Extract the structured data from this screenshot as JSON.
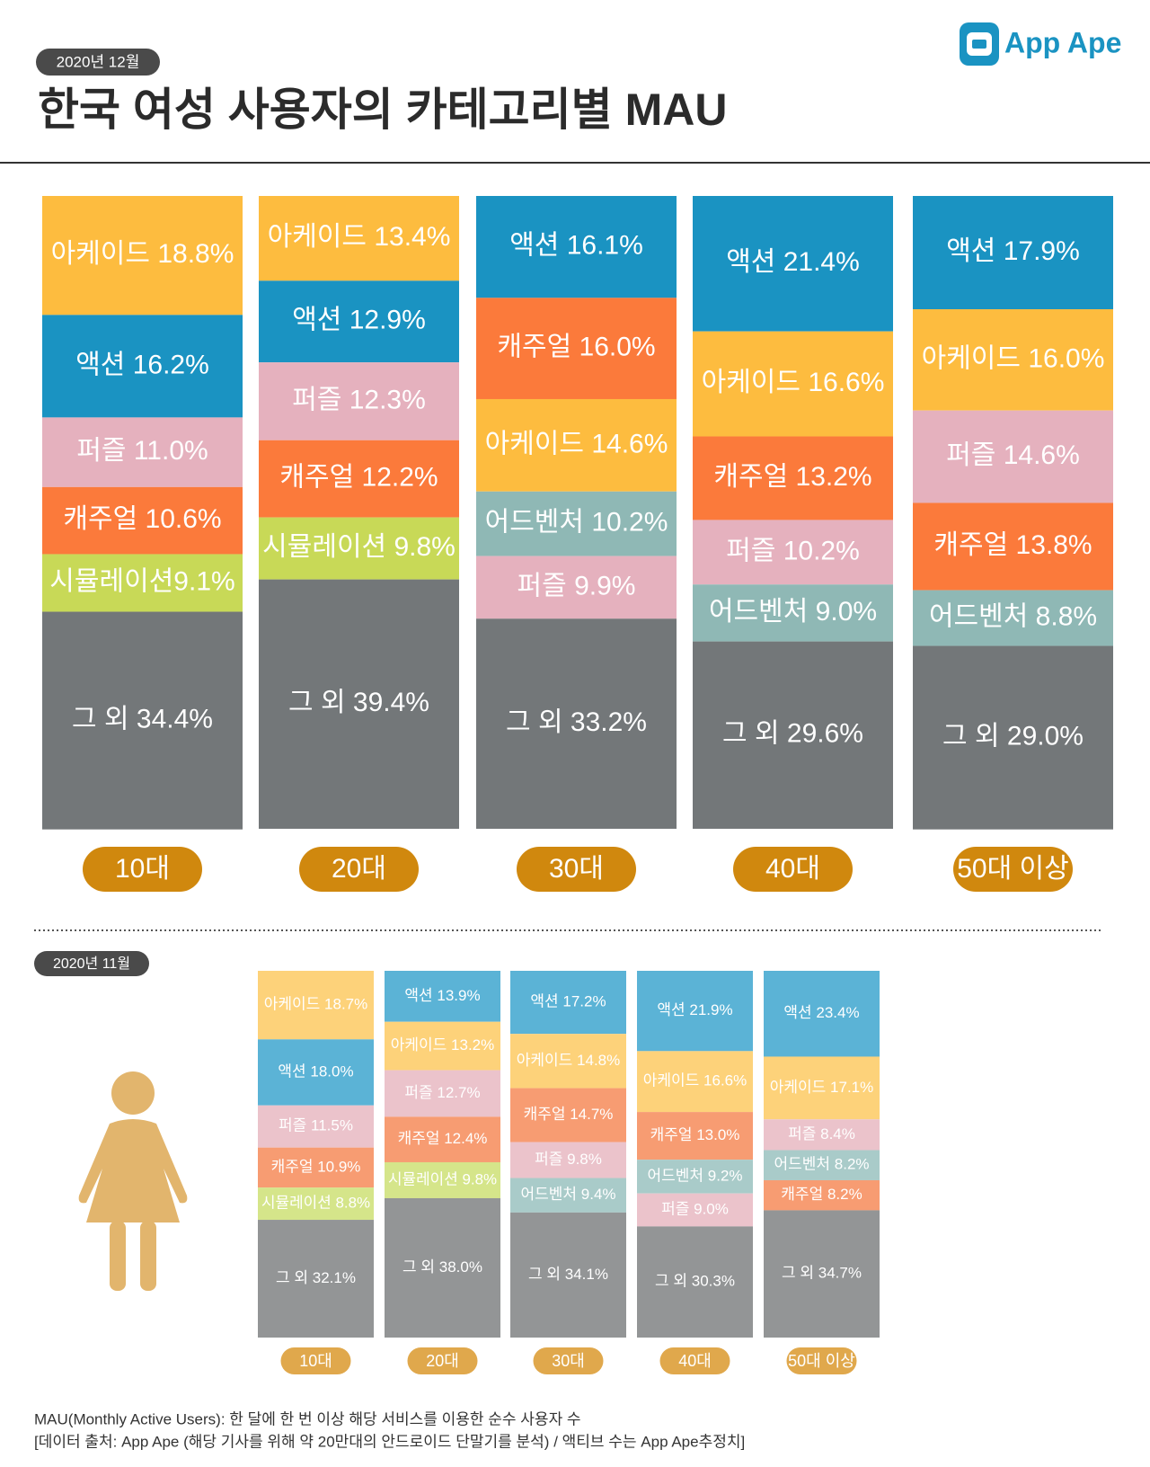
{
  "logo": "App Ape",
  "chart_data": [
    {
      "type": "stacked-bar",
      "title": "한국 여성 사용자의 카테고리별 MAU",
      "subtitle": "2020년 12월",
      "ylim": [
        0,
        100
      ],
      "pill_color": "#D0880E",
      "categories": [
        "10대",
        "20대",
        "30대",
        "40대",
        "50대 이상"
      ],
      "stacks": [
        [
          {
            "value": 18.8,
            "value_label": "아케이드 18.8%",
            "color": "#FDBC3F"
          },
          {
            "value": 16.2,
            "value_label": "액션 16.2%",
            "color": "#1A93C2"
          },
          {
            "value": 11.0,
            "value_label": "퍼즐 11.0%",
            "color": "#E5B1BE"
          },
          {
            "value": 10.6,
            "value_label": "캐주얼 10.6%",
            "color": "#FB7A3B"
          },
          {
            "value": 9.1,
            "value_label": "시뮬레이션9.1%",
            "color": "#C8D957"
          },
          {
            "value": 34.4,
            "value_label": "그 외 34.4%",
            "color": "#737779"
          }
        ],
        [
          {
            "value": 13.4,
            "value_label": "아케이드 13.4%",
            "color": "#FDBC3F"
          },
          {
            "value": 12.9,
            "value_label": "액션 12.9%",
            "color": "#1A93C2"
          },
          {
            "value": 12.3,
            "value_label": "퍼즐 12.3%",
            "color": "#E5B1BE"
          },
          {
            "value": 12.2,
            "value_label": "캐주얼 12.2%",
            "color": "#FB7A3B"
          },
          {
            "value": 9.8,
            "value_label": "시뮬레이션 9.8%",
            "color": "#C8D957"
          },
          {
            "value": 39.4,
            "value_label": "그 외 39.4%",
            "color": "#737779"
          }
        ],
        [
          {
            "value": 16.1,
            "value_label": "액션 16.1%",
            "color": "#1A93C2"
          },
          {
            "value": 16.0,
            "value_label": "캐주얼 16.0%",
            "color": "#FB7A3B"
          },
          {
            "value": 14.6,
            "value_label": "아케이드 14.6%",
            "color": "#FDBC3F"
          },
          {
            "value": 10.2,
            "value_label": "어드벤처 10.2%",
            "color": "#8FB8B5"
          },
          {
            "value": 9.9,
            "value_label": "퍼즐 9.9%",
            "color": "#E5B1BE"
          },
          {
            "value": 33.2,
            "value_label": "그 외 33.2%",
            "color": "#737779"
          }
        ],
        [
          {
            "value": 21.4,
            "value_label": "액션 21.4%",
            "color": "#1A93C2"
          },
          {
            "value": 16.6,
            "value_label": "아케이드 16.6%",
            "color": "#FDBC3F"
          },
          {
            "value": 13.2,
            "value_label": "캐주얼 13.2%",
            "color": "#FB7A3B"
          },
          {
            "value": 10.2,
            "value_label": "퍼즐 10.2%",
            "color": "#E5B1BE"
          },
          {
            "value": 9.0,
            "value_label": "어드벤처 9.0%",
            "color": "#8FB8B5"
          },
          {
            "value": 29.6,
            "value_label": "그 외 29.6%",
            "color": "#737779"
          }
        ],
        [
          {
            "value": 17.9,
            "value_label": "액션 17.9%",
            "color": "#1A93C2"
          },
          {
            "value": 16.0,
            "value_label": "아케이드 16.0%",
            "color": "#FDBC3F"
          },
          {
            "value": 14.6,
            "value_label": "퍼즐 14.6%",
            "color": "#E5B1BE"
          },
          {
            "value": 13.8,
            "value_label": "캐주얼 13.8%",
            "color": "#FB7A3B"
          },
          {
            "value": 8.8,
            "value_label": "어드벤처 8.8%",
            "color": "#8FB8B5"
          },
          {
            "value": 29.0,
            "value_label": "그 외 29.0%",
            "color": "#737779"
          }
        ]
      ]
    },
    {
      "type": "stacked-bar",
      "subtitle": "2020년 11월",
      "ylim": [
        0,
        100
      ],
      "pill_color": "#E0A84C",
      "categories": [
        "10대",
        "20대",
        "30대",
        "40대",
        "50대 이상"
      ],
      "stacks": [
        [
          {
            "value": 18.7,
            "value_label": "아케이드 18.7%",
            "color": "#FDD27A"
          },
          {
            "value": 18.0,
            "value_label": "액션 18.0%",
            "color": "#5BB3D6"
          },
          {
            "value": 11.5,
            "value_label": "퍼즐 11.5%",
            "color": "#EBC3CB"
          },
          {
            "value": 10.9,
            "value_label": "캐주얼 10.9%",
            "color": "#F79C72"
          },
          {
            "value": 8.8,
            "value_label": "시뮬레이션 8.8%",
            "color": "#D5E58A"
          },
          {
            "value": 32.1,
            "value_label": "그 외 32.1%",
            "color": "#939596"
          }
        ],
        [
          {
            "value": 13.9,
            "value_label": "액션 13.9%",
            "color": "#5BB3D6"
          },
          {
            "value": 13.2,
            "value_label": "아케이드 13.2%",
            "color": "#FDD27A"
          },
          {
            "value": 12.7,
            "value_label": "퍼즐 12.7%",
            "color": "#EBC3CB"
          },
          {
            "value": 12.4,
            "value_label": "캐주얼 12.4%",
            "color": "#F79C72"
          },
          {
            "value": 9.8,
            "value_label": "시뮬레이션 9.8%",
            "color": "#D5E58A"
          },
          {
            "value": 38.0,
            "value_label": "그 외 38.0%",
            "color": "#939596"
          }
        ],
        [
          {
            "value": 17.2,
            "value_label": "액션 17.2%",
            "color": "#5BB3D6"
          },
          {
            "value": 14.8,
            "value_label": "아케이드 14.8%",
            "color": "#FDD27A"
          },
          {
            "value": 14.7,
            "value_label": "캐주얼 14.7%",
            "color": "#F79C72"
          },
          {
            "value": 9.8,
            "value_label": "퍼즐 9.8%",
            "color": "#EBC3CB"
          },
          {
            "value": 9.4,
            "value_label": "어드벤처 9.4%",
            "color": "#A9CBC9"
          },
          {
            "value": 34.1,
            "value_label": "그 외 34.1%",
            "color": "#939596"
          }
        ],
        [
          {
            "value": 21.9,
            "value_label": "액션 21.9%",
            "color": "#5BB3D6"
          },
          {
            "value": 16.6,
            "value_label": "아케이드 16.6%",
            "color": "#FDD27A"
          },
          {
            "value": 13.0,
            "value_label": "캐주얼 13.0%",
            "color": "#F79C72"
          },
          {
            "value": 9.2,
            "value_label": "어드벤처 9.2%",
            "color": "#A9CBC9"
          },
          {
            "value": 9.0,
            "value_label": "퍼즐 9.0%",
            "color": "#EBC3CB"
          },
          {
            "value": 30.3,
            "value_label": "그 외 30.3%",
            "color": "#939596"
          }
        ],
        [
          {
            "value": 23.4,
            "value_label": "액션 23.4%",
            "color": "#5BB3D6"
          },
          {
            "value": 17.1,
            "value_label": "아케이드 17.1%",
            "color": "#FDD27A"
          },
          {
            "value": 8.4,
            "value_label": "퍼즐 8.4%",
            "color": "#EBC3CB"
          },
          {
            "value": 8.2,
            "value_label": "어드벤처 8.2%",
            "color": "#A9CBC9"
          },
          {
            "value": 8.2,
            "value_label": "캐주얼 8.2%",
            "color": "#F79C72"
          },
          {
            "value": 34.7,
            "value_label": "그 외 34.7%",
            "color": "#939596"
          }
        ]
      ]
    }
  ],
  "footnotes": [
    "MAU(Monthly Active Users):  한 달에 한 번 이상 해당 서비스를 이용한 순수 사용자 수",
    "[데이터 출처: App Ape (해당 기사를 위해 약 20만대의 안드로이드 단말기를 분석) / 액티브 수는 App Ape추정치]"
  ]
}
